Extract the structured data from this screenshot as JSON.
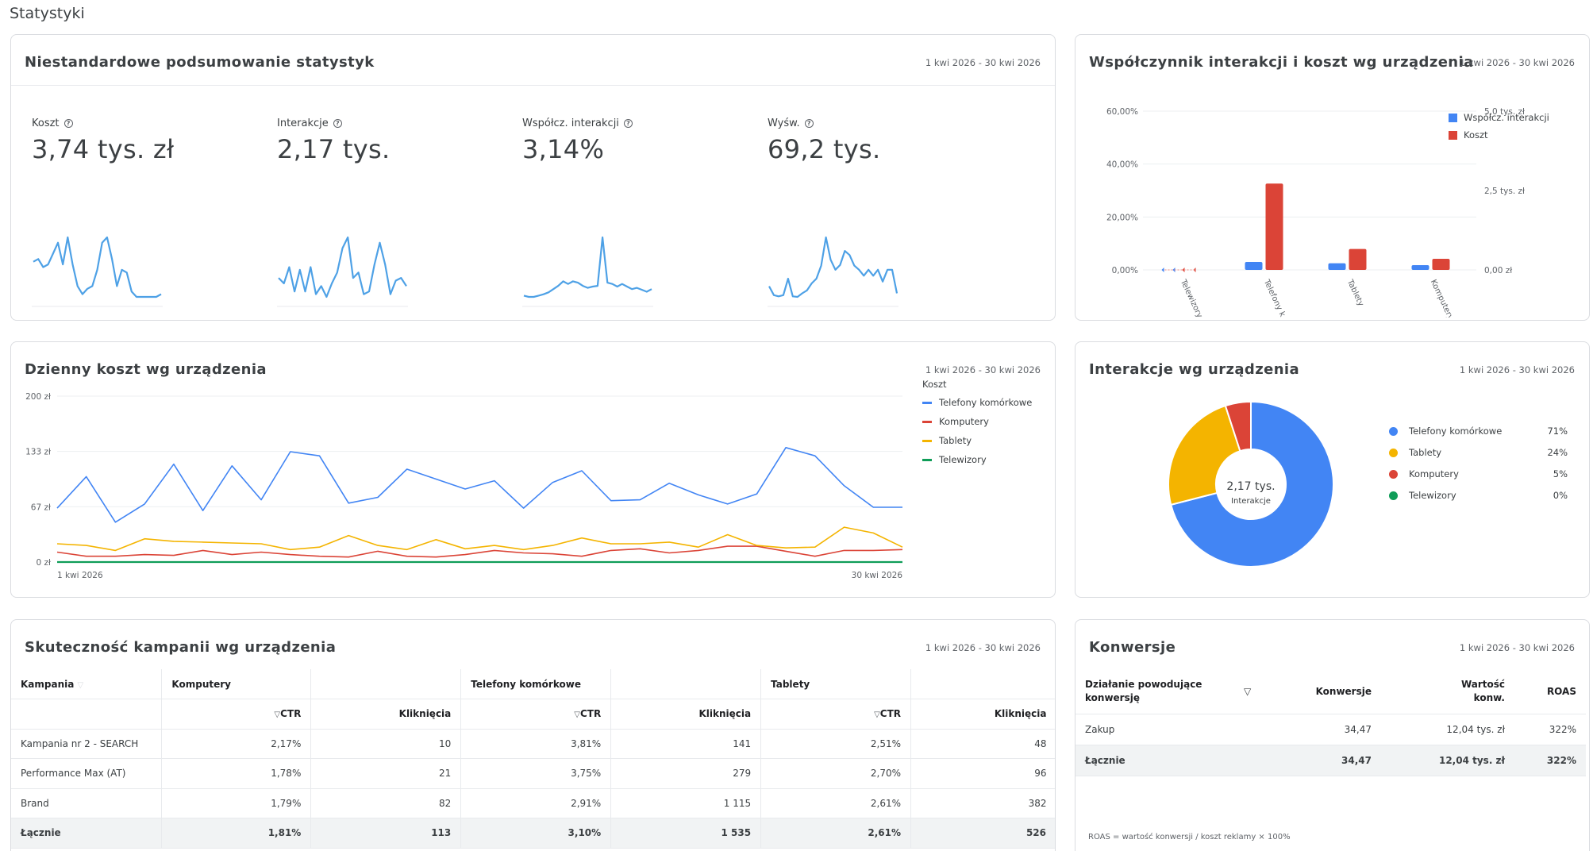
{
  "page_title": "Statystyki",
  "summary": {
    "title": "Niestandardowe podsumowanie statystyk",
    "date": "1 kwi 2026 - 30 kwi 2026",
    "metrics": [
      {
        "label": "Koszt",
        "value": "3,74 tys. zł",
        "trend": [
          105,
          110,
          95,
          100,
          120,
          140,
          100,
          150,
          100,
          60,
          45,
          55,
          60,
          90,
          140,
          150,
          110,
          60,
          90,
          85,
          50,
          40,
          40,
          40,
          40,
          40,
          45
        ]
      },
      {
        "label": "Interakcje",
        "value": "2,17 tys.",
        "trend": [
          85,
          75,
          105,
          60,
          100,
          60,
          105,
          55,
          70,
          50,
          75,
          95,
          140,
          160,
          85,
          95,
          55,
          60,
          110,
          150,
          110,
          55,
          80,
          85,
          70
        ]
      },
      {
        "label": "Współcz. interakcji",
        "value": "3,14%",
        "trend": [
          40,
          38,
          38,
          40,
          42,
          45,
          50,
          55,
          62,
          58,
          62,
          60,
          55,
          52,
          54,
          55,
          130,
          60,
          58,
          54,
          58,
          54,
          50,
          52,
          49,
          46,
          50
        ]
      },
      {
        "label": "Wyśw.",
        "value": "69,2 tys.",
        "trend": [
          62,
          47,
          45,
          47,
          75,
          45,
          44,
          50,
          55,
          67,
          75,
          97,
          145,
          107,
          90,
          98,
          122,
          115,
          97,
          90,
          80,
          90,
          80,
          90,
          70,
          90,
          90,
          50
        ]
      }
    ]
  },
  "device_ratio": {
    "title": "Współczynnik interakcji i koszt wg urządzenia",
    "date": "1 kwi 2026 - 30 kwi 2026",
    "legend": [
      {
        "name": "Współcz. interakcji",
        "color": "#4285f4"
      },
      {
        "name": "Koszt",
        "color": "#db4437"
      }
    ],
    "chart_data": {
      "type": "bar",
      "categories": [
        "Telewizory",
        "Telefony k.",
        "Tablety",
        "Komputery"
      ],
      "series": [
        {
          "name": "Współcz. interakcji",
          "values": [
            0.0,
            3.0,
            2.5,
            1.8
          ]
        },
        {
          "name": "Koszt",
          "values": [
            0,
            2720,
            660,
            350
          ]
        }
      ],
      "left_ticks": [
        "60,00%",
        "40,00%",
        "20,00%",
        "0,00%"
      ],
      "right_ticks": [
        "5,0 tys. zł",
        "2,5 tys. zł",
        "0,00 zł"
      ],
      "ylim_left": [
        0,
        60
      ],
      "ylim_right": [
        0,
        5000
      ]
    }
  },
  "daily_cost": {
    "title": "Dzienny koszt wg urządzenia",
    "date": "1 kwi 2026 - 30 kwi 2026",
    "legend_title": "Koszt",
    "chart_data": {
      "type": "line",
      "y_ticks": [
        "200 zł",
        "133 zł",
        "67 zł",
        "0 zł"
      ],
      "ylim": [
        0,
        200
      ],
      "x_start_label": "1 kwi 2026",
      "x_end_label": "30 kwi 2026",
      "series": [
        {
          "name": "Telefony komórkowe",
          "color": "#4285f4",
          "values": [
            65,
            103,
            48,
            70,
            118,
            62,
            116,
            75,
            133,
            128,
            71,
            78,
            112,
            100,
            88,
            98,
            65,
            96,
            110,
            74,
            75,
            95,
            81,
            70,
            82,
            138,
            128,
            92,
            66,
            66
          ]
        },
        {
          "name": "Komputery",
          "color": "#db4437",
          "values": [
            12,
            7,
            7,
            9,
            8,
            14,
            9,
            12,
            9,
            7,
            6,
            13,
            7,
            6,
            9,
            14,
            11,
            10,
            7,
            14,
            16,
            11,
            14,
            19,
            19,
            13,
            7,
            14,
            14,
            15
          ]
        },
        {
          "name": "Tablety",
          "color": "#f4b400",
          "values": [
            22,
            20,
            14,
            28,
            25,
            24,
            23,
            22,
            15,
            18,
            32,
            20,
            15,
            27,
            16,
            20,
            15,
            20,
            29,
            22,
            22,
            24,
            18,
            33,
            20,
            17,
            18,
            42,
            35,
            18
          ]
        },
        {
          "name": "Telewizory",
          "color": "#0f9d58",
          "values": [
            0,
            0,
            0,
            0,
            0,
            0,
            0,
            0,
            0,
            0,
            0,
            0,
            0,
            0,
            0,
            0,
            0,
            0,
            0,
            0,
            0,
            0,
            0,
            0,
            0,
            0,
            0,
            0,
            0,
            0
          ]
        }
      ]
    }
  },
  "interactions": {
    "title": "Interakcje wg urządzenia",
    "date": "1 kwi 2026 - 30 kwi 2026",
    "center_value": "2,17 tys.",
    "center_label": "Interakcje",
    "chart_data": {
      "type": "pie",
      "slices": [
        {
          "name": "Telefony komórkowe",
          "value": 71,
          "label": "71%",
          "color": "#4285f4"
        },
        {
          "name": "Tablety",
          "value": 24,
          "label": "24%",
          "color": "#f4b400"
        },
        {
          "name": "Komputery",
          "value": 5,
          "label": "5%",
          "color": "#db4437"
        },
        {
          "name": "Telewizory",
          "value": 0,
          "label": "0%",
          "color": "#0f9d58"
        }
      ]
    }
  },
  "campaigns": {
    "title": "Skuteczność kampanii wg urządzenia",
    "date": "1 kwi 2026 - 30 kwi 2026",
    "col_campaign": "Kampania",
    "groups": [
      "Komputery",
      "Telefony komórkowe",
      "Tablety"
    ],
    "sub_ctr": "CTR",
    "sub_clicks": "Kliknięcia",
    "rows": [
      {
        "name": "Kampania nr 2 - SEARCH",
        "cells": [
          "2,17%",
          "10",
          "3,81%",
          "141",
          "2,51%",
          "48"
        ]
      },
      {
        "name": "Performance Max (AT)",
        "cells": [
          "1,78%",
          "21",
          "3,75%",
          "279",
          "2,70%",
          "96"
        ]
      },
      {
        "name": "Brand",
        "cells": [
          "1,79%",
          "82",
          "2,91%",
          "1 115",
          "2,61%",
          "382"
        ]
      }
    ],
    "total": {
      "name": "Łącznie",
      "cells": [
        "1,81%",
        "113",
        "3,10%",
        "1 535",
        "2,61%",
        "526"
      ]
    }
  },
  "conversions": {
    "title": "Konwersje",
    "date": "1 kwi 2026 - 30 kwi 2026",
    "col_action_1": "Działanie powodujące",
    "col_action_2": "konwersję",
    "col_conv": "Konwersje",
    "col_value_1": "Wartość",
    "col_value_2": "konw.",
    "col_roas": "ROAS",
    "rows": [
      {
        "action": "Zakup",
        "conv": "34,47",
        "value": "12,04 tys. zł",
        "roas": "322%"
      }
    ],
    "total": {
      "action": "Łącznie",
      "conv": "34,47",
      "value": "12,04 tys. zł",
      "roas": "322%"
    },
    "footnote": "ROAS = wartość konwersji / koszt reklamy × 100%"
  }
}
